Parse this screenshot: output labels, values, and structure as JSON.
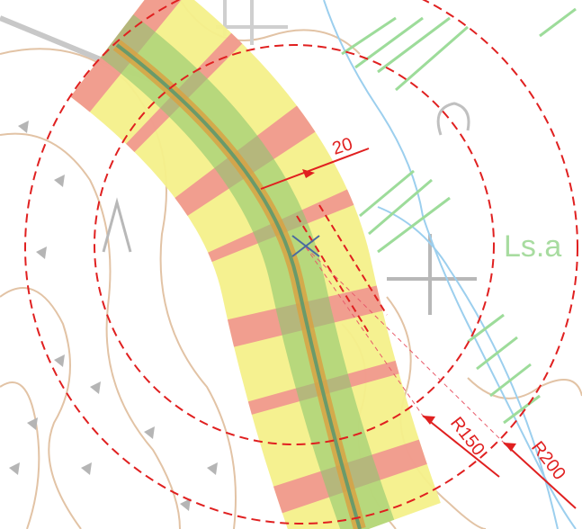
{
  "labels": {
    "width_dimension": "20",
    "inner_radius": "R150",
    "outer_radius": "R200",
    "map_label": "Ls.a"
  }
}
